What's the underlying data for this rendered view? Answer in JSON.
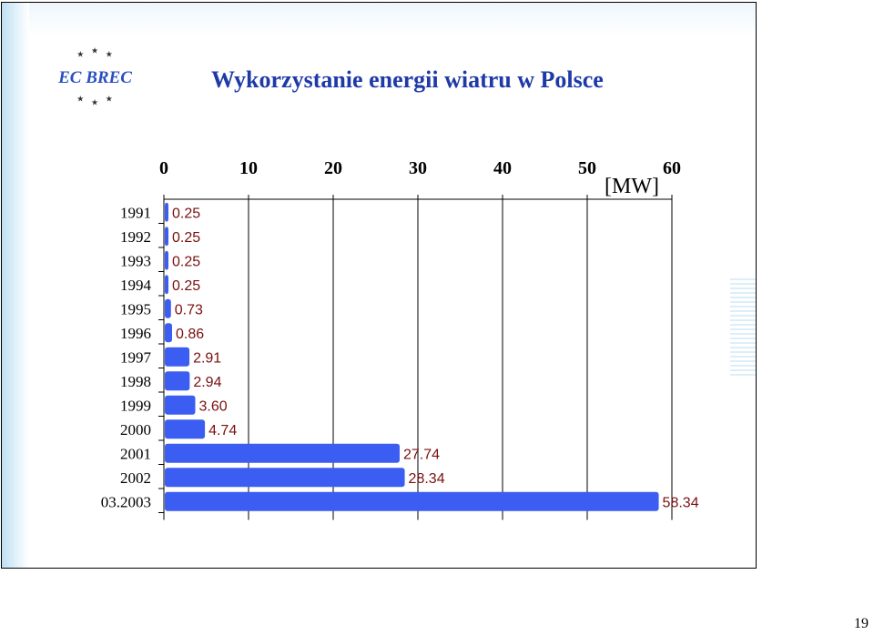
{
  "slide": {
    "title": "Wykorzystanie energii wiatru w Polsce",
    "logo_text": "EC BREC",
    "page_number": "19"
  },
  "colors": {
    "bar": "#3b5df2",
    "value_label": "#7a0f0f",
    "title": "#1f3aa8",
    "logo": "#2a4fc0",
    "star": "#333333"
  },
  "chart_data": {
    "type": "bar",
    "orientation": "horizontal",
    "unit_label": "[MW]",
    "categories": [
      "1991",
      "1992",
      "1993",
      "1994",
      "1995",
      "1996",
      "1997",
      "1998",
      "1999",
      "2000",
      "2001",
      "2002",
      "03.2003"
    ],
    "values": [
      0.25,
      0.25,
      0.25,
      0.25,
      0.73,
      0.86,
      2.91,
      2.94,
      3.6,
      4.74,
      27.74,
      28.34,
      58.34
    ],
    "value_labels": [
      "0.25",
      "0.25",
      "0.25",
      "0.25",
      "0.73",
      "0.86",
      "2.91",
      "2.94",
      "3.60",
      "4.74",
      "27.74",
      "28.34",
      "58.34"
    ],
    "xlim": [
      0,
      60
    ],
    "xticks": [
      0,
      10,
      20,
      30,
      40,
      50,
      60
    ],
    "x_axis_position": "top",
    "grid": "vertical"
  }
}
